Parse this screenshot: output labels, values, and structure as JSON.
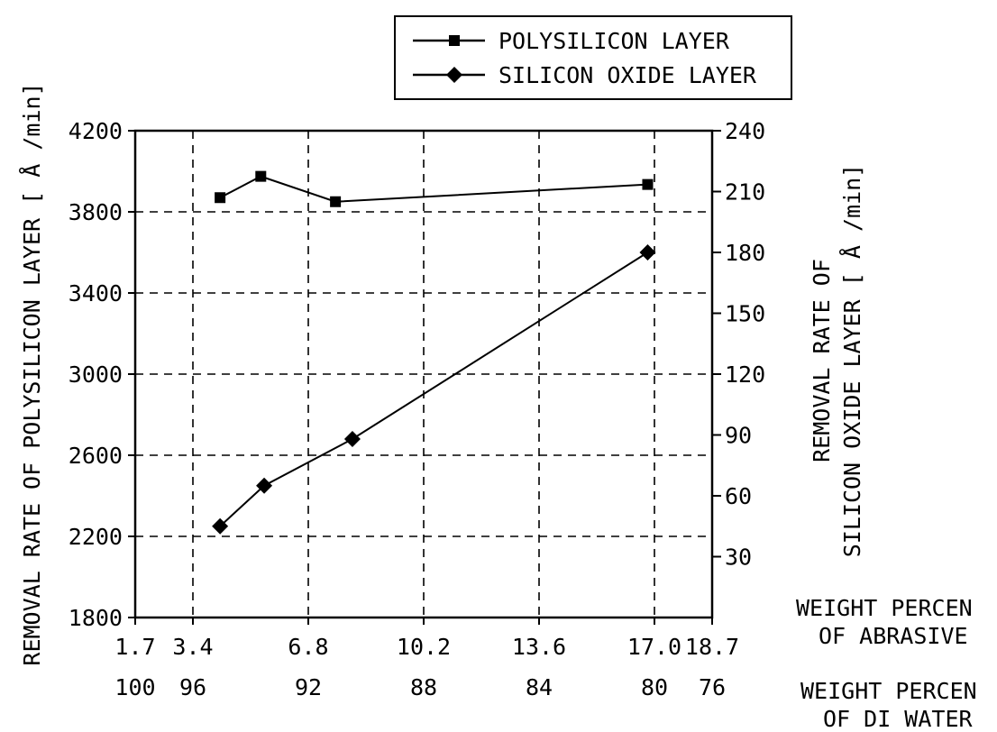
{
  "chart_data": {
    "type": "line",
    "title": "",
    "x_axis_primary": {
      "label": [
        "WEIGHT PERCEN",
        "OF ABRASIVE"
      ],
      "ticks": [
        "1.7",
        "3.4",
        "6.8",
        "10.2",
        "13.6",
        "17.0",
        "18.7"
      ],
      "tick_values": [
        1.7,
        3.4,
        6.8,
        10.2,
        13.6,
        17.0,
        18.7
      ],
      "range": [
        1.7,
        18.7
      ]
    },
    "x_axis_secondary": {
      "label": [
        "WEIGHT PERCEN",
        "OF DI WATER"
      ],
      "ticks": [
        "100",
        "96",
        "92",
        "88",
        "84",
        "80",
        "76"
      ]
    },
    "y_axis_left": {
      "label": "REMOVAL RATE OF POLYSILICON LAYER [ Å /min]",
      "ticks": [
        "1800",
        "2200",
        "2600",
        "3000",
        "3400",
        "3800",
        "4200"
      ],
      "range": [
        1800,
        4200
      ]
    },
    "y_axis_right": {
      "label_lines": [
        "REMOVAL RATE OF",
        "SILICON OXIDE LAYER [ Å /min]"
      ],
      "ticks": [
        "30",
        "60",
        "90",
        "120",
        "150",
        "180",
        "210",
        "240"
      ],
      "range": [
        0,
        240
      ]
    },
    "grid": true,
    "legend_position": "top-right",
    "series": [
      {
        "name": "POLYSILICON LAYER",
        "marker": "square",
        "axis": "left",
        "x": [
          4.2,
          5.4,
          7.6,
          16.8
        ],
        "y": [
          3870,
          3975,
          3850,
          3935
        ]
      },
      {
        "name": "SILICON OXIDE LAYER",
        "marker": "diamond",
        "axis": "right",
        "x": [
          4.2,
          5.5,
          8.1,
          16.8
        ],
        "y": [
          45,
          65,
          88,
          180
        ]
      }
    ]
  }
}
